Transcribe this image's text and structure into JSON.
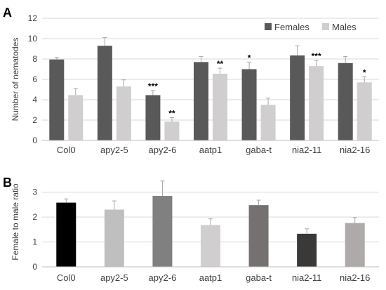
{
  "panels": {
    "a": {
      "label": "A"
    },
    "b": {
      "label": "B"
    }
  },
  "chart_data": [
    {
      "type": "bar",
      "panel": "A",
      "ylabel": "Number of nematodes",
      "ylim": [
        0,
        12
      ],
      "yticks": [
        0,
        2,
        4,
        6,
        8,
        10,
        12
      ],
      "grid": true,
      "legend": "top-right",
      "categories": [
        "Col0",
        "apy2-5",
        "apy2-6",
        "aatp1",
        "gaba-t",
        "nia2-11",
        "nia2-16"
      ],
      "series": [
        {
          "name": "Females",
          "color": "#595959",
          "values": [
            7.95,
            9.3,
            4.45,
            7.7,
            7.0,
            8.35,
            7.6
          ],
          "errors": [
            0.2,
            0.8,
            0.45,
            0.55,
            0.7,
            0.95,
            0.65
          ],
          "significance": [
            "",
            "",
            "***",
            "",
            "*",
            "",
            ""
          ]
        },
        {
          "name": "Males",
          "color": "#d0cece",
          "values": [
            4.45,
            5.3,
            1.85,
            6.55,
            3.5,
            7.3,
            5.7
          ],
          "errors": [
            0.65,
            0.65,
            0.4,
            0.55,
            0.65,
            0.55,
            0.55
          ],
          "significance": [
            "",
            "",
            "**",
            "**",
            "",
            "***",
            "*"
          ]
        }
      ]
    },
    {
      "type": "bar",
      "panel": "B",
      "ylabel": "Female to male ratio",
      "ylim": [
        0,
        3.5
      ],
      "yticks": [
        0,
        1,
        2,
        3
      ],
      "grid": true,
      "categories": [
        "Col0",
        "apy2-5",
        "apy2-6",
        "aatp1",
        "gaba-t",
        "nia2-11",
        "nia2-16"
      ],
      "values": [
        2.58,
        2.3,
        2.85,
        1.68,
        2.48,
        1.33,
        1.76
      ],
      "errors": [
        0.15,
        0.35,
        0.6,
        0.25,
        0.2,
        0.2,
        0.22
      ],
      "colors": [
        "#000000",
        "#bfbfbf",
        "#808080",
        "#d0cece",
        "#767171",
        "#3b3838",
        "#aeaaaa"
      ]
    }
  ]
}
